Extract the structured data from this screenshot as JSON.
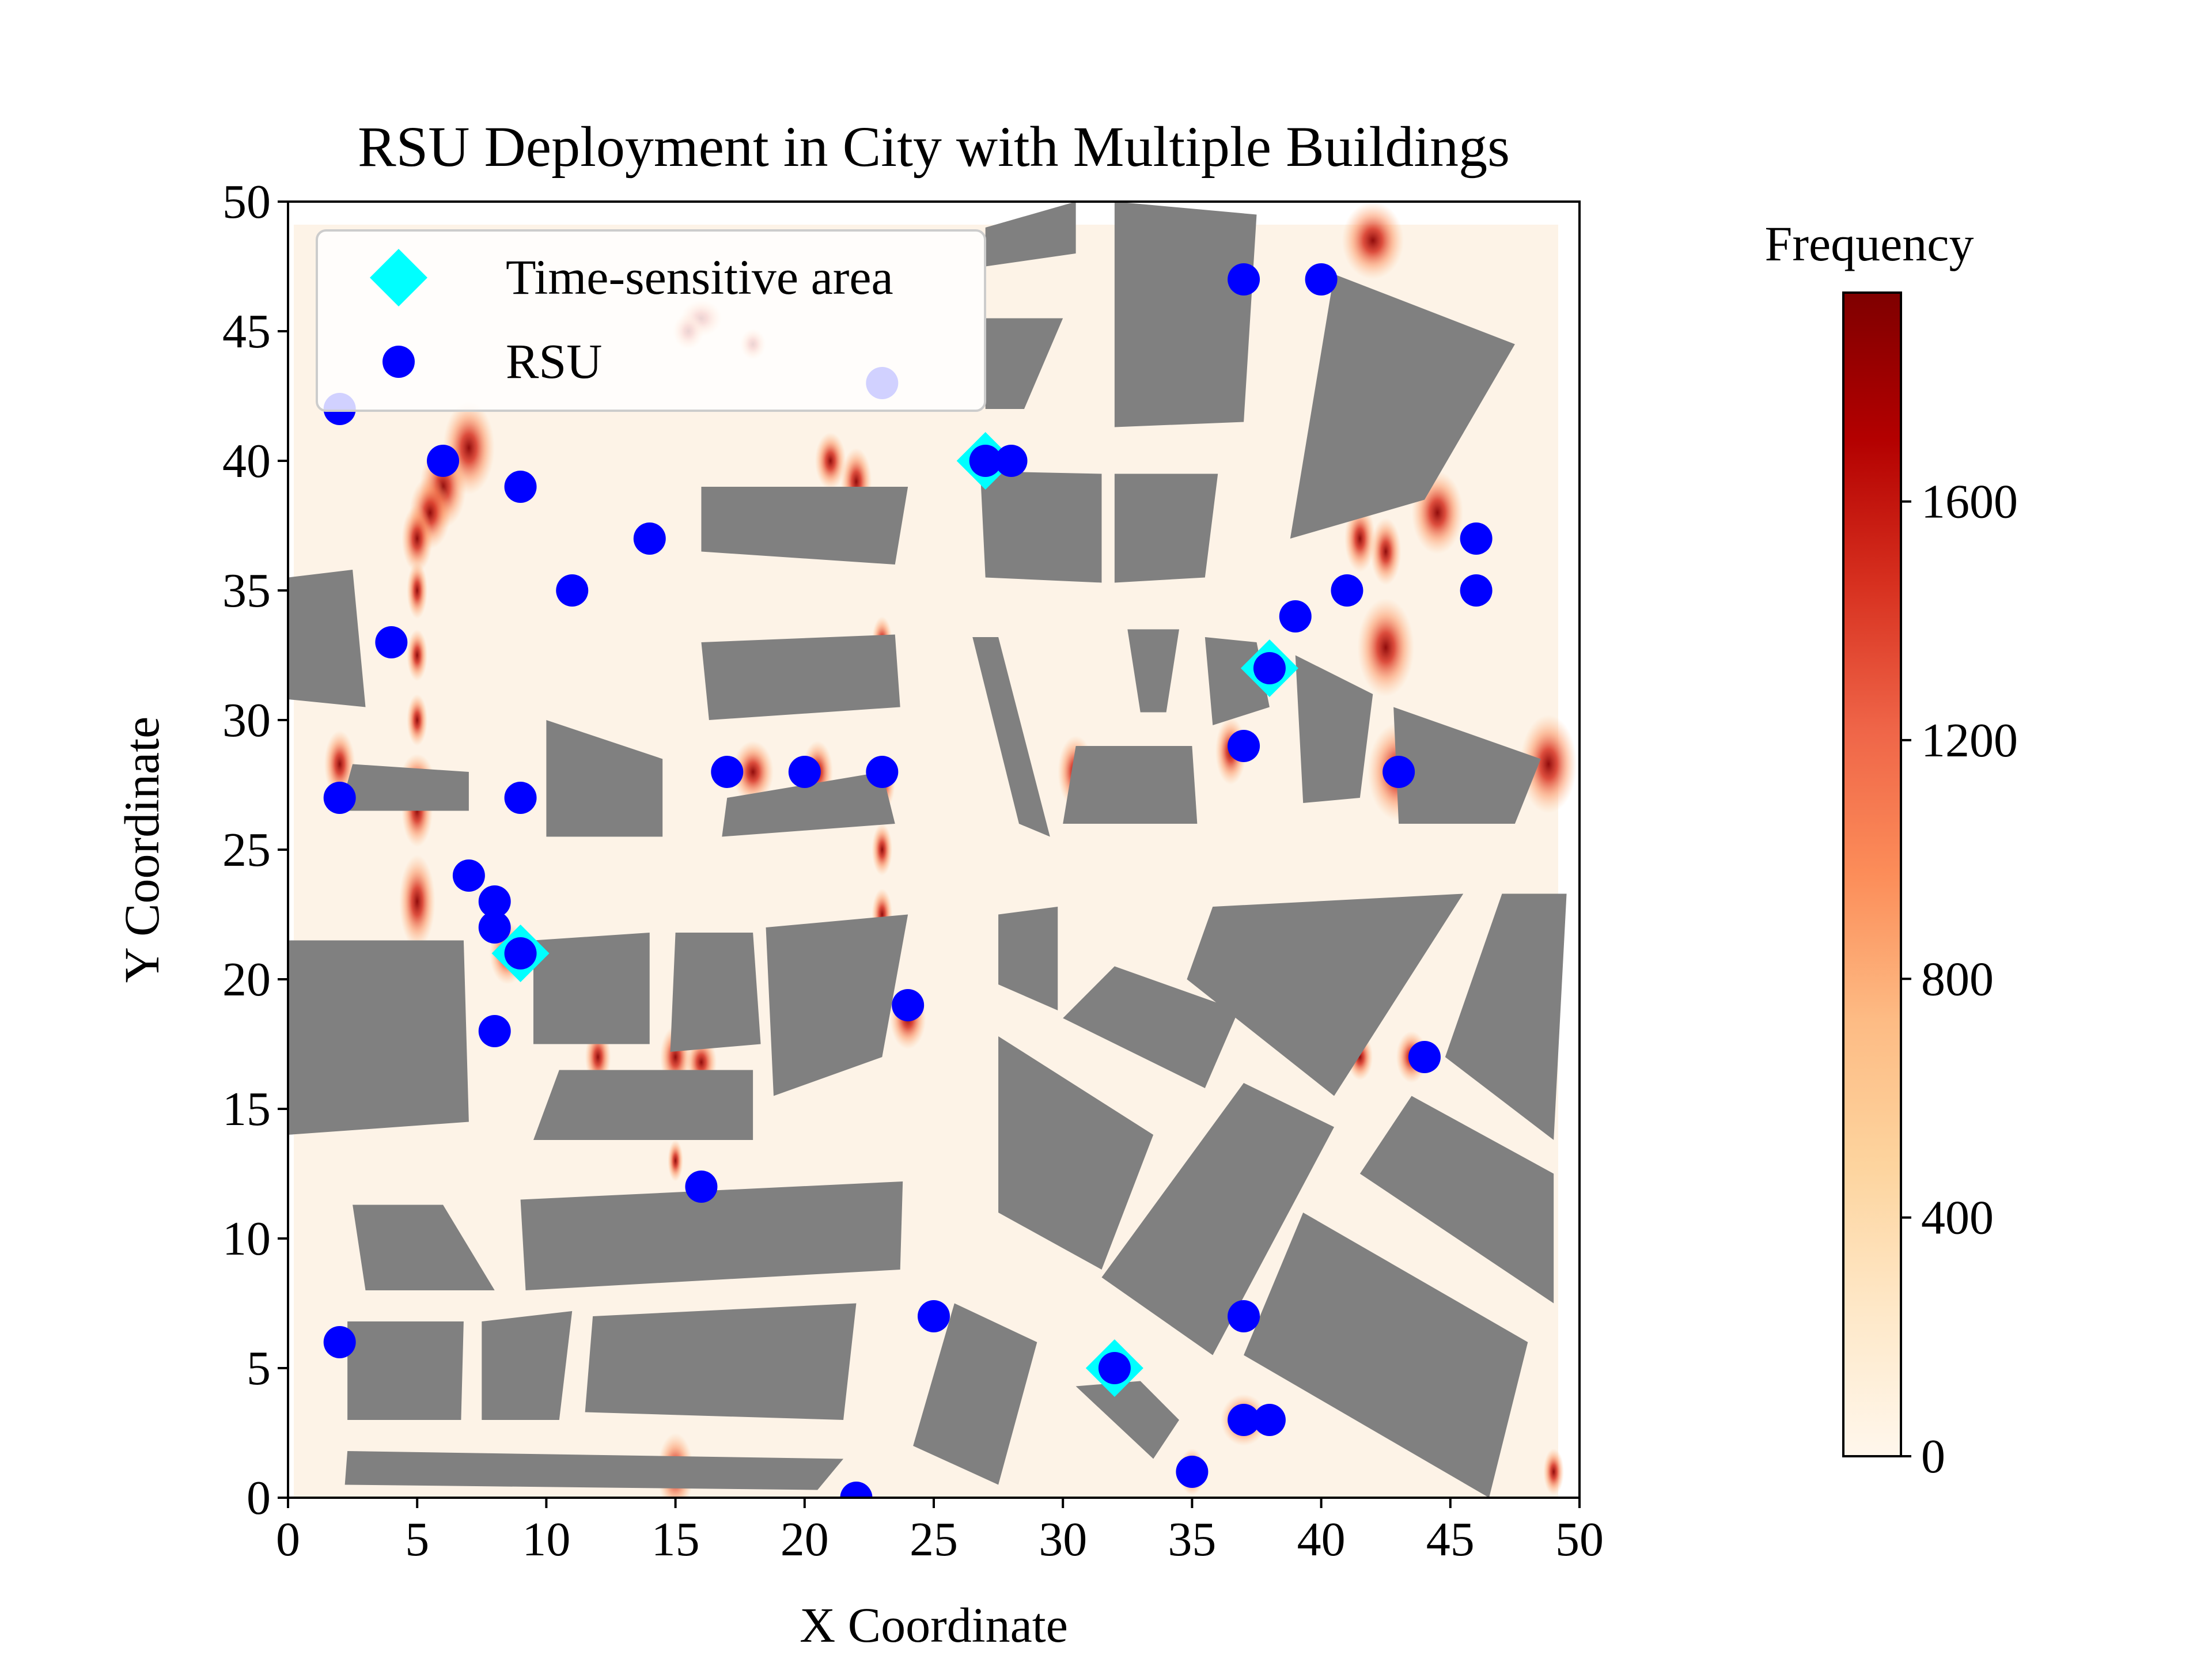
{
  "chart_data": {
    "type": "scatter",
    "title": "RSU Deployment in City with Multiple Buildings",
    "xlabel": "X Coordinate",
    "ylabel": "Y Coordinate",
    "xlim": [
      0,
      50
    ],
    "ylim": [
      0,
      50
    ],
    "xticks": [
      0,
      5,
      10,
      15,
      20,
      25,
      30,
      35,
      40,
      45,
      50
    ],
    "yticks": [
      0,
      5,
      10,
      15,
      20,
      25,
      30,
      35,
      40,
      45,
      50
    ],
    "grid": false,
    "legend_position": "top-left",
    "colors": {
      "rsu": "#0000ff",
      "time_sensitive": "#00ffff",
      "building": "#808080",
      "background": "#fdf3e7"
    },
    "colorbar": {
      "label": "Frequency",
      "colormap": "OrRd",
      "min": 0,
      "max": 1950,
      "ticks": [
        0,
        400,
        800,
        1200,
        1600
      ]
    },
    "series": [
      {
        "name": "Time-sensitive area",
        "marker": "diamond",
        "points": [
          [
            27,
            40
          ],
          [
            38,
            32
          ],
          [
            9,
            21
          ],
          [
            32,
            5
          ]
        ]
      },
      {
        "name": "RSU",
        "marker": "circle",
        "points": [
          [
            37,
            47
          ],
          [
            40,
            47
          ],
          [
            23,
            43
          ],
          [
            2,
            42
          ],
          [
            6,
            40
          ],
          [
            9,
            39
          ],
          [
            27,
            40
          ],
          [
            28,
            40
          ],
          [
            14,
            37
          ],
          [
            46,
            37
          ],
          [
            11,
            35
          ],
          [
            41,
            35
          ],
          [
            46,
            35
          ],
          [
            39,
            34
          ],
          [
            4,
            33
          ],
          [
            38,
            32
          ],
          [
            37,
            29
          ],
          [
            17,
            28
          ],
          [
            20,
            28
          ],
          [
            23,
            28
          ],
          [
            43,
            28
          ],
          [
            2,
            27
          ],
          [
            9,
            27
          ],
          [
            7,
            24
          ],
          [
            8,
            23
          ],
          [
            8,
            22
          ],
          [
            9,
            21
          ],
          [
            24,
            19
          ],
          [
            8,
            18
          ],
          [
            44,
            17
          ],
          [
            16,
            12
          ],
          [
            25,
            7
          ],
          [
            37,
            7
          ],
          [
            2,
            6
          ],
          [
            32,
            5
          ],
          [
            37,
            3
          ],
          [
            38,
            3
          ],
          [
            35,
            1
          ],
          [
            22,
            0
          ]
        ]
      }
    ],
    "buildings": [
      [
        [
          27,
          47.5
        ],
        [
          27,
          49
        ],
        [
          30.5,
          50
        ],
        [
          30.5,
          48
        ]
      ],
      [
        [
          32,
          50
        ],
        [
          37.5,
          49.5
        ],
        [
          37,
          41.5
        ],
        [
          32,
          41.3
        ]
      ],
      [
        [
          27,
          45.5
        ],
        [
          30,
          45.5
        ],
        [
          28.5,
          42
        ],
        [
          27,
          42
        ]
      ],
      [
        [
          40.5,
          47.2
        ],
        [
          47.5,
          44.5
        ],
        [
          44,
          38.5
        ],
        [
          38.8,
          37
        ]
      ],
      [
        [
          16,
          39
        ],
        [
          24,
          39
        ],
        [
          23.5,
          36
        ],
        [
          16,
          36.5
        ]
      ],
      [
        [
          26.8,
          39.6
        ],
        [
          31.5,
          39.5
        ],
        [
          31.5,
          35.3
        ],
        [
          27,
          35.5
        ]
      ],
      [
        [
          32,
          39.5
        ],
        [
          36,
          39.5
        ],
        [
          35.5,
          35.5
        ],
        [
          32,
          35.3
        ]
      ],
      [
        [
          0,
          35.5
        ],
        [
          2.5,
          35.8
        ],
        [
          3,
          30.5
        ],
        [
          0,
          30.8
        ]
      ],
      [
        [
          16,
          33
        ],
        [
          23.5,
          33.3
        ],
        [
          23.7,
          30.5
        ],
        [
          16.3,
          30
        ]
      ],
      [
        [
          26.5,
          33.2
        ],
        [
          27.5,
          33.2
        ],
        [
          29.5,
          25.5
        ],
        [
          28.3,
          26
        ]
      ],
      [
        [
          32.5,
          33.5
        ],
        [
          34.5,
          33.5
        ],
        [
          34,
          30.3
        ],
        [
          33,
          30.3
        ]
      ],
      [
        [
          35.5,
          33.2
        ],
        [
          37.5,
          33
        ],
        [
          38,
          30.5
        ],
        [
          35.8,
          29.8
        ]
      ],
      [
        [
          39,
          32.5
        ],
        [
          42,
          31
        ],
        [
          41.5,
          27
        ],
        [
          39.3,
          26.8
        ]
      ],
      [
        [
          42.8,
          30.5
        ],
        [
          48.5,
          28.5
        ],
        [
          47.5,
          26
        ],
        [
          43,
          26
        ]
      ],
      [
        [
          30.5,
          29
        ],
        [
          35,
          29
        ],
        [
          35.2,
          26
        ],
        [
          30,
          26
        ]
      ],
      [
        [
          2.5,
          28.3
        ],
        [
          7,
          28
        ],
        [
          7,
          26.5
        ],
        [
          2,
          26.5
        ]
      ],
      [
        [
          10,
          30
        ],
        [
          14.5,
          28.5
        ],
        [
          14.5,
          25.5
        ],
        [
          10,
          25.5
        ]
      ],
      [
        [
          17,
          27
        ],
        [
          23,
          28
        ],
        [
          23.5,
          26
        ],
        [
          16.8,
          25.5
        ]
      ],
      [
        [
          0,
          21.5
        ],
        [
          6.8,
          21.5
        ],
        [
          7,
          14.5
        ],
        [
          0,
          14
        ]
      ],
      [
        [
          9.5,
          21.5
        ],
        [
          14,
          21.8
        ],
        [
          14,
          17.5
        ],
        [
          9.5,
          17.5
        ]
      ],
      [
        [
          15,
          21.8
        ],
        [
          18,
          21.8
        ],
        [
          18.3,
          17.5
        ],
        [
          14.8,
          17.2
        ]
      ],
      [
        [
          18.5,
          22
        ],
        [
          24,
          22.5
        ],
        [
          23,
          17
        ],
        [
          18.8,
          15.5
        ]
      ],
      [
        [
          27.5,
          22.5
        ],
        [
          29.8,
          22.8
        ],
        [
          29.8,
          18.8
        ],
        [
          27.5,
          19.8
        ]
      ],
      [
        [
          32,
          20.5
        ],
        [
          36.8,
          18.8
        ],
        [
          35.5,
          15.8
        ],
        [
          30,
          18.5
        ]
      ],
      [
        [
          35.8,
          22.8
        ],
        [
          45.5,
          23.3
        ],
        [
          40.5,
          15.5
        ],
        [
          34.8,
          20
        ]
      ],
      [
        [
          47,
          23.3
        ],
        [
          49.5,
          23.3
        ],
        [
          49,
          13.8
        ],
        [
          44.8,
          17
        ]
      ],
      [
        [
          10.5,
          16.5
        ],
        [
          18,
          16.5
        ],
        [
          18,
          13.8
        ],
        [
          9.5,
          13.8
        ]
      ],
      [
        [
          27.5,
          17.8
        ],
        [
          33.5,
          14
        ],
        [
          31.5,
          8.8
        ],
        [
          27.5,
          11
        ]
      ],
      [
        [
          37,
          16
        ],
        [
          40.5,
          14.3
        ],
        [
          35.8,
          5.5
        ],
        [
          31.5,
          8.5
        ]
      ],
      [
        [
          43.5,
          15.5
        ],
        [
          49,
          12.5
        ],
        [
          49,
          7.5
        ],
        [
          41.5,
          12.5
        ]
      ],
      [
        [
          2.5,
          11.3
        ],
        [
          6,
          11.3
        ],
        [
          8,
          8
        ],
        [
          3,
          8
        ]
      ],
      [
        [
          9,
          11.5
        ],
        [
          23.8,
          12.2
        ],
        [
          23.7,
          8.8
        ],
        [
          9.2,
          8
        ]
      ],
      [
        [
          2.3,
          6.8
        ],
        [
          6.8,
          6.8
        ],
        [
          6.7,
          3
        ],
        [
          2.3,
          3
        ]
      ],
      [
        [
          7.5,
          6.8
        ],
        [
          11,
          7.2
        ],
        [
          10.5,
          3
        ],
        [
          7.5,
          3
        ]
      ],
      [
        [
          11.8,
          7
        ],
        [
          22,
          7.5
        ],
        [
          21.5,
          3
        ],
        [
          11.5,
          3.3
        ]
      ],
      [
        [
          39.3,
          11
        ],
        [
          48,
          6
        ],
        [
          46.5,
          0
        ],
        [
          37,
          5.5
        ]
      ],
      [
        [
          25.8,
          7.5
        ],
        [
          29,
          6
        ],
        [
          27.5,
          0.5
        ],
        [
          24.2,
          2
        ]
      ],
      [
        [
          33,
          4.5
        ],
        [
          34.5,
          3
        ],
        [
          33.5,
          1.5
        ],
        [
          30.5,
          4.3
        ]
      ],
      [
        [
          2.3,
          1.8
        ],
        [
          21.5,
          1.5
        ],
        [
          20.5,
          0.3
        ],
        [
          2.2,
          0.5
        ]
      ]
    ],
    "hotspots": [
      [
        42,
        48.5,
        1.2,
        1.5
      ],
      [
        16,
        45.5,
        0.8,
        0.7
      ],
      [
        15.5,
        45,
        0.6,
        0.7
      ],
      [
        18,
        44.5,
        0.5,
        0.6
      ],
      [
        7,
        40.5,
        1.0,
        1.8
      ],
      [
        6,
        39,
        0.9,
        1.6
      ],
      [
        5.5,
        38,
        0.8,
        1.4
      ],
      [
        5,
        37,
        0.6,
        1.3
      ],
      [
        21,
        40,
        0.6,
        1.1
      ],
      [
        22,
        39.2,
        0.6,
        1.3
      ],
      [
        44.5,
        38,
        1.0,
        1.6
      ],
      [
        41.5,
        37,
        0.6,
        1.3
      ],
      [
        42.5,
        36.5,
        0.6,
        1.3
      ],
      [
        5,
        35,
        0.4,
        1.1
      ],
      [
        42.5,
        32.8,
        1.1,
        1.9
      ],
      [
        5,
        32.5,
        0.4,
        1.0
      ],
      [
        23,
        33,
        0.4,
        1.0
      ],
      [
        5,
        30,
        0.4,
        1.0
      ],
      [
        2,
        28.3,
        0.6,
        1.3
      ],
      [
        5,
        27.5,
        0.7,
        1.2
      ],
      [
        48.8,
        28.3,
        1.1,
        1.9
      ],
      [
        43,
        28,
        1.2,
        1.9
      ],
      [
        30.5,
        28,
        0.7,
        1.4
      ],
      [
        36.5,
        28.8,
        0.6,
        1.3
      ],
      [
        18,
        28,
        0.8,
        1.2
      ],
      [
        20.5,
        28,
        0.6,
        1.2
      ],
      [
        23,
        27.5,
        0.5,
        1.0
      ],
      [
        5,
        26.5,
        0.6,
        1.4
      ],
      [
        23,
        25,
        0.4,
        1.0
      ],
      [
        5,
        23,
        0.7,
        1.8
      ],
      [
        23,
        22.5,
        0.4,
        1.0
      ],
      [
        8.5,
        21,
        0.7,
        1.2
      ],
      [
        24,
        18.5,
        0.7,
        1.2
      ],
      [
        0,
        17,
        0.3,
        1.0
      ],
      [
        12,
        17,
        0.5,
        1.1
      ],
      [
        15,
        17,
        0.6,
        1.2
      ],
      [
        16,
        16.8,
        0.6,
        1.0
      ],
      [
        41.5,
        17,
        0.5,
        0.9
      ],
      [
        43.5,
        17,
        0.6,
        1.0
      ],
      [
        15,
        13,
        0.3,
        0.8
      ],
      [
        37,
        3,
        0.9,
        1.0
      ],
      [
        15,
        1,
        0.7,
        1.5
      ],
      [
        35,
        1,
        0.5,
        0.9
      ],
      [
        49,
        1,
        0.4,
        0.9
      ]
    ]
  }
}
